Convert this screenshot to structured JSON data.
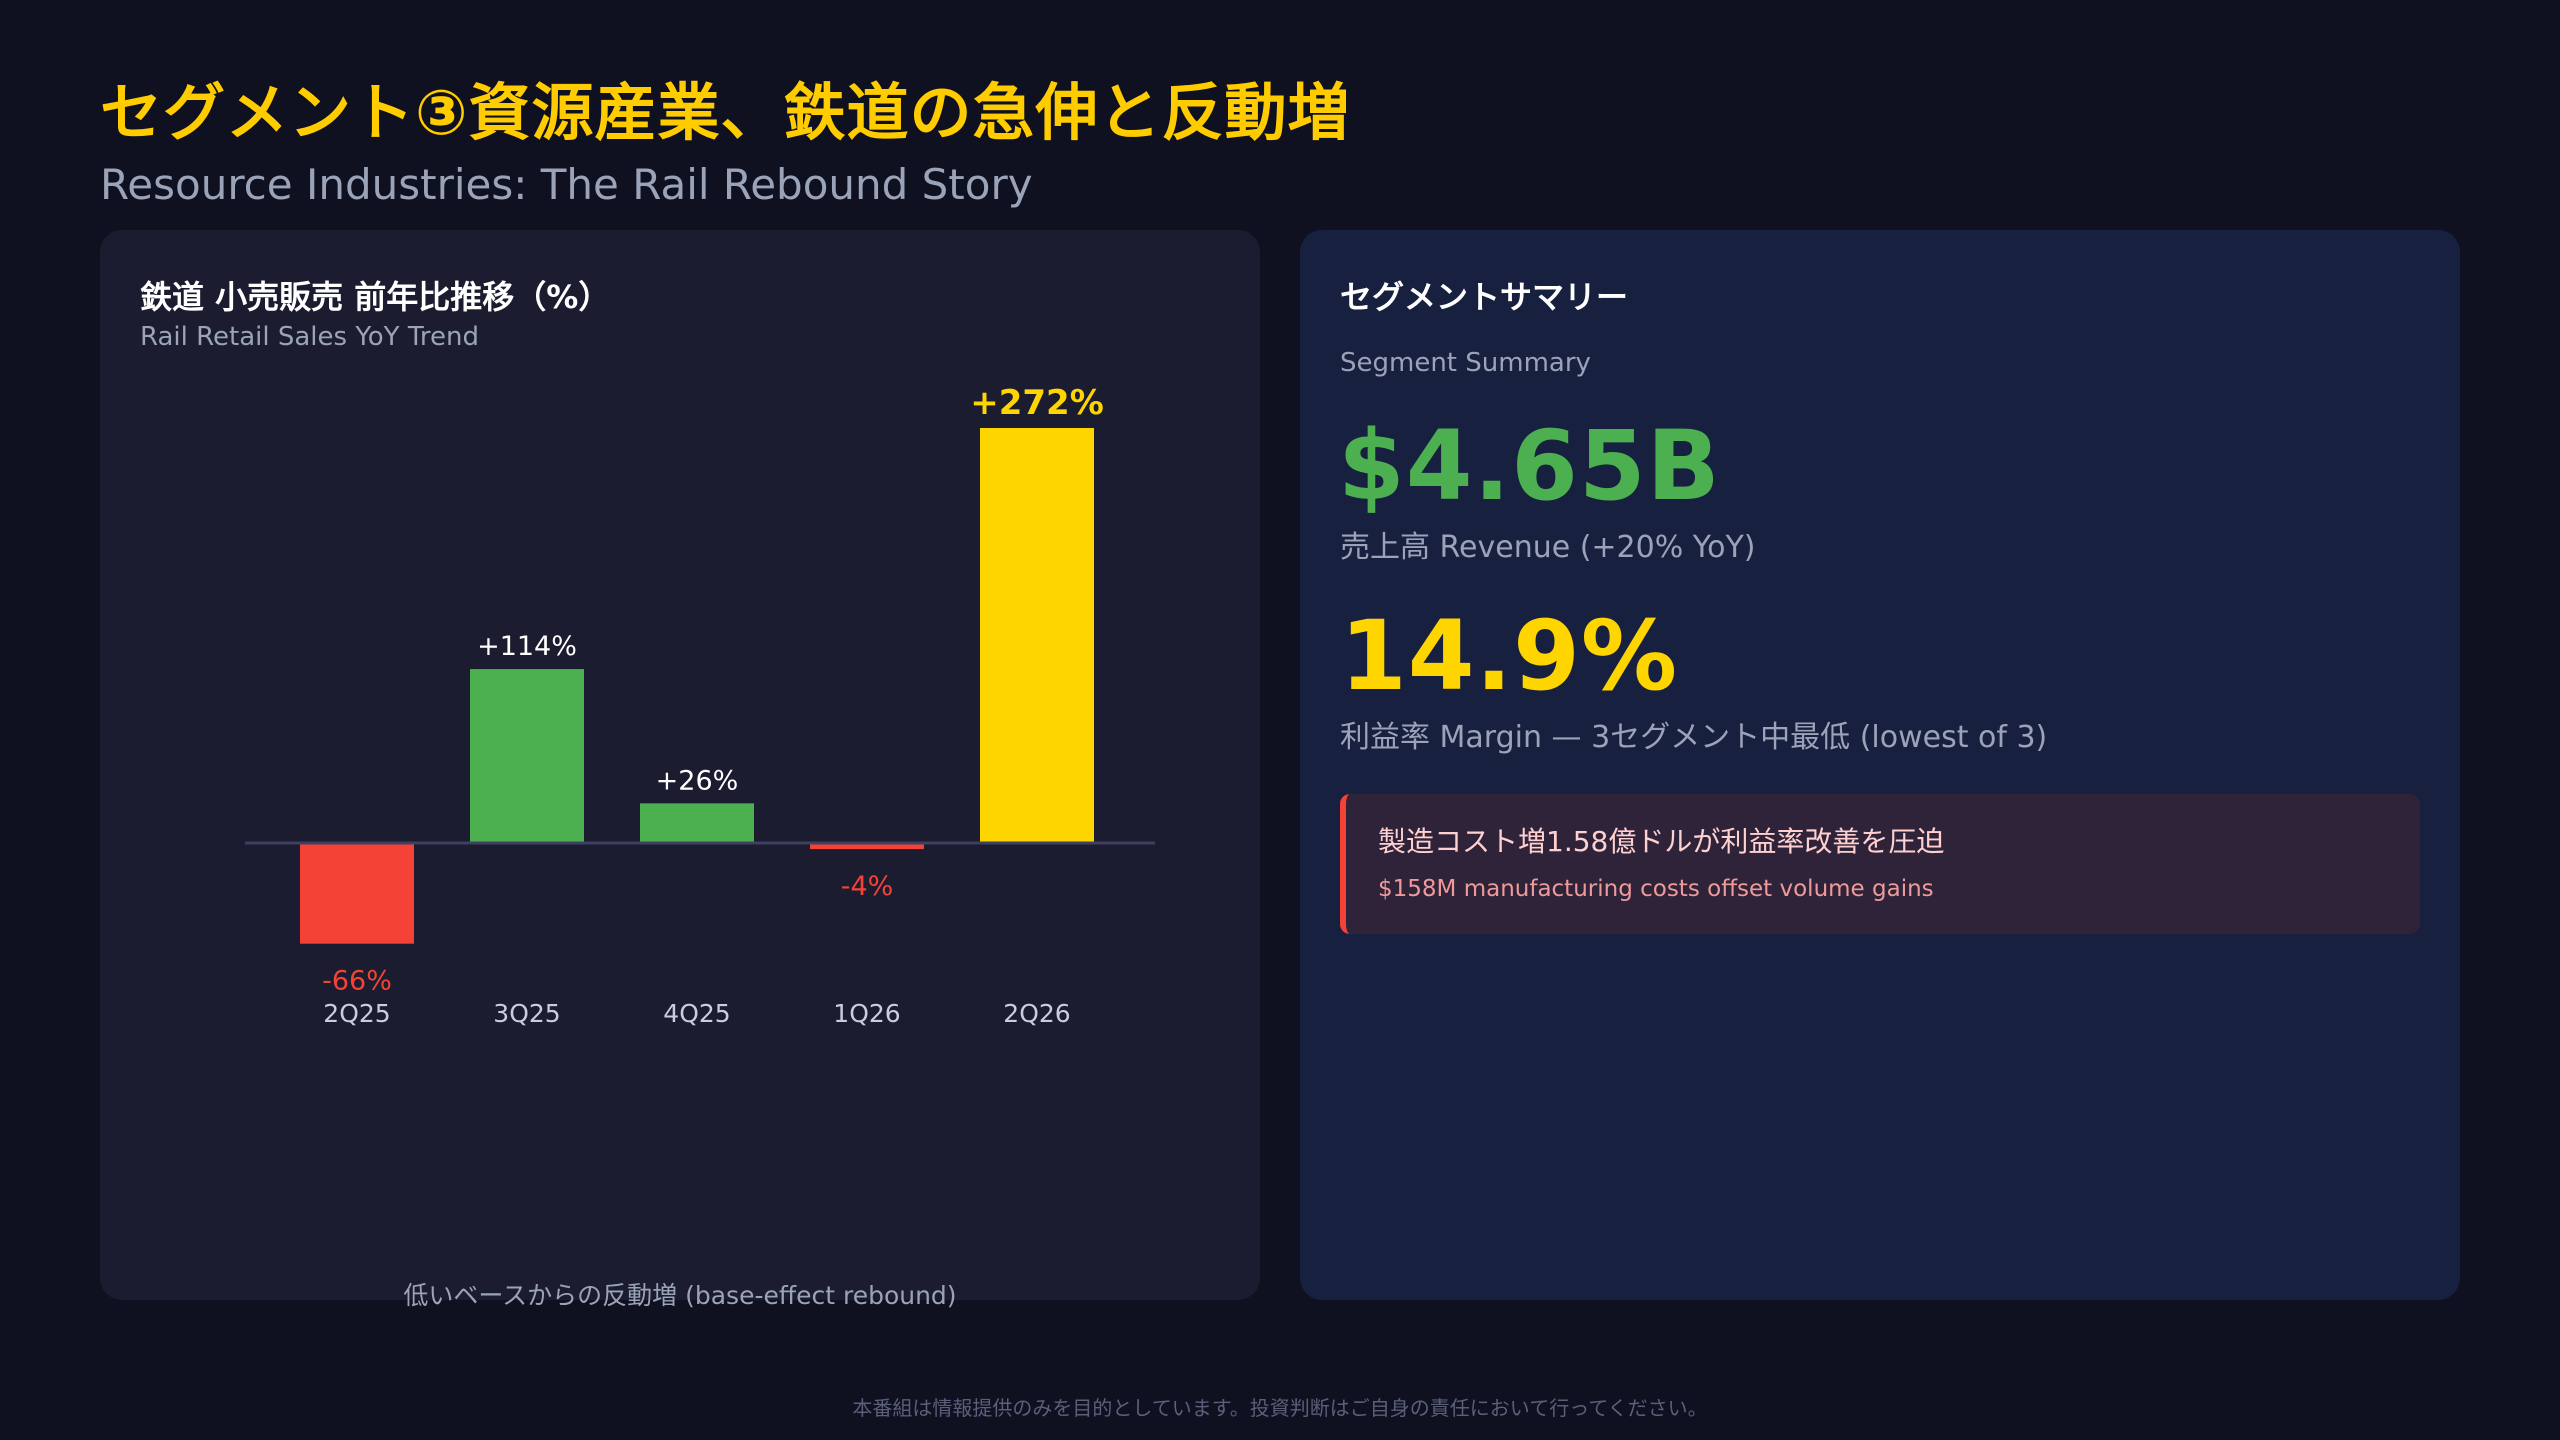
{
  "header": {
    "title": "セグメント③資源産業、鉄道の急伸と反動増",
    "subtitle": "Resource Industries: The Rail Rebound Story"
  },
  "chart_panel": {
    "title": "鉄道 小売販売 前年比推移（%）",
    "subtitle": "Rail Retail Sales YoY Trend",
    "note": "低いベースからの反動増 (base-effect rebound)"
  },
  "chart_data": {
    "type": "bar",
    "title": "鉄道 小売販売 前年比推移（%）",
    "subtitle": "Rail Retail Sales YoY Trend",
    "categories": [
      "2Q25",
      "3Q25",
      "4Q25",
      "1Q26",
      "2Q26"
    ],
    "values": [
      -66,
      114,
      26,
      -4,
      272
    ],
    "data_labels": [
      "-66%",
      "+114%",
      "+26%",
      "-4%",
      "+272%"
    ],
    "colors": [
      "#f44336",
      "#4caf50",
      "#4caf50",
      "#f44336",
      "#ffd500"
    ],
    "label_colors": [
      "#f44336",
      "#ffffff",
      "#ffffff",
      "#f44336",
      "#ffd500"
    ],
    "highlight_index": 4,
    "baseline": 0,
    "grid": false,
    "legend": "none"
  },
  "summary": {
    "title": "セグメントサマリー",
    "subtitle": "Segment Summary",
    "revenue_value": "$4.65B",
    "revenue_label": "売上高 Revenue (+20% YoY)",
    "margin_value": "14.9%",
    "margin_label": "利益率 Margin — 3セグメント中最低 (lowest of 3)",
    "alert_title": "製造コスト増1.58億ドルが利益率改善を圧迫",
    "alert_subtitle": "$158M manufacturing costs offset volume gains"
  },
  "footer": {
    "disclaimer": "本番組は情報提供のみを目的としています。投資判断はご自身の責任において行ってください。"
  },
  "colors": {
    "background": "#0f1020",
    "accent": "#ffcc00",
    "positive": "#4caf50",
    "negative": "#f44336",
    "highlight": "#ffd500"
  }
}
